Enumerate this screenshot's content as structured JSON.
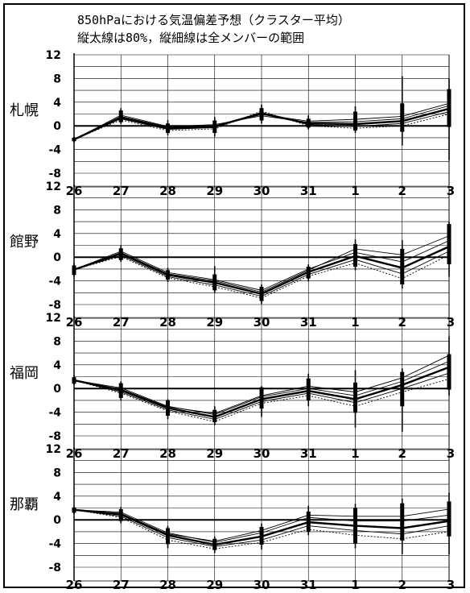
{
  "title": {
    "line1": "850hPaにおける気温偏差予想（クラスター平均）",
    "line2": "縦太線は80%，縦細線は全メンバーの範囲"
  },
  "chart_data": [
    {
      "type": "line",
      "station": "札幌",
      "categories": [
        "26",
        "27",
        "28",
        "29",
        "30",
        "31",
        "1",
        "2",
        "3"
      ],
      "yticks": [
        "12",
        "8",
        "4",
        "0",
        "-4",
        "-8"
      ],
      "ylim": [
        -8,
        12
      ],
      "grid": true,
      "series": [
        {
          "values": [
            -2.3,
            1.4,
            -0.4,
            -0.1,
            2.1,
            0.4,
            0.3,
            0.8,
            2.9
          ]
        },
        {
          "values": [
            -2.3,
            1.8,
            -0.1,
            0.2,
            1.7,
            0.6,
            0.7,
            1.2,
            3.4
          ]
        },
        {
          "values": [
            -2.3,
            1.2,
            -0.6,
            -0.3,
            2.3,
            0.2,
            -0.1,
            0.4,
            2.4
          ]
        },
        {
          "values": [
            -2.3,
            1.6,
            -0.2,
            0.0,
            1.9,
            0.8,
            1.1,
            1.6,
            3.8
          ]
        },
        {
          "values": [
            -2.3,
            1.0,
            -0.8,
            -0.5,
            2.5,
            0.0,
            -0.4,
            0.0,
            2.0
          ]
        }
      ],
      "range80": [
        [
          -2.6,
          -2.0
        ],
        [
          0.6,
          2.6
        ],
        [
          -1.2,
          0.4
        ],
        [
          -1.2,
          0.9
        ],
        [
          0.9,
          3.0
        ],
        [
          -0.3,
          1.2
        ],
        [
          -0.8,
          2.4
        ],
        [
          -1.0,
          3.8
        ],
        [
          -0.2,
          6.2
        ]
      ],
      "rangeAll": [
        [
          -2.8,
          -1.8
        ],
        [
          0.3,
          3.0
        ],
        [
          -1.6,
          1.0
        ],
        [
          -1.8,
          1.5
        ],
        [
          0.4,
          3.6
        ],
        [
          -0.6,
          1.8
        ],
        [
          -1.2,
          3.3
        ],
        [
          -3.3,
          8.4
        ],
        [
          -5.8,
          8.0
        ]
      ]
    },
    {
      "type": "line",
      "station": "館野",
      "categories": [
        "26",
        "27",
        "28",
        "29",
        "30",
        "31",
        "1",
        "2",
        "3"
      ],
      "yticks": [
        "12",
        "8",
        "4",
        "0",
        "-4",
        "-8"
      ],
      "ylim": [
        -8,
        12
      ],
      "grid": true,
      "series": [
        {
          "values": [
            -2.1,
            0.6,
            -3.0,
            -4.3,
            -6.2,
            -2.5,
            0.2,
            -1.8,
            1.8
          ]
        },
        {
          "values": [
            -2.1,
            1.0,
            -2.6,
            -3.8,
            -5.6,
            -2.0,
            0.8,
            -0.8,
            2.8
          ]
        },
        {
          "values": [
            -2.1,
            0.3,
            -3.3,
            -4.7,
            -6.6,
            -2.9,
            -0.4,
            -2.8,
            1.0
          ]
        },
        {
          "values": [
            -2.1,
            0.8,
            -2.8,
            -4.0,
            -5.9,
            -2.2,
            1.4,
            0.4,
            3.6
          ]
        },
        {
          "values": [
            -2.1,
            0.1,
            -3.5,
            -5.0,
            -6.9,
            -3.2,
            -1.0,
            -3.6,
            0.4
          ]
        }
      ],
      "range80": [
        [
          -3.0,
          -1.4
        ],
        [
          -0.5,
          1.5
        ],
        [
          -3.8,
          -2.2
        ],
        [
          -5.6,
          -2.9
        ],
        [
          -7.4,
          -5.0
        ],
        [
          -3.6,
          -1.6
        ],
        [
          -1.6,
          2.2
        ],
        [
          -4.6,
          1.4
        ],
        [
          -1.2,
          5.6
        ]
      ],
      "rangeAll": [
        [
          -3.3,
          -1.0
        ],
        [
          -0.8,
          2.0
        ],
        [
          -4.2,
          -1.8
        ],
        [
          -6.1,
          -1.5
        ],
        [
          -7.9,
          -4.6
        ],
        [
          -4.1,
          -1.2
        ],
        [
          -2.2,
          3.0
        ],
        [
          -5.3,
          2.9
        ],
        [
          -3.3,
          6.0
        ]
      ]
    },
    {
      "type": "line",
      "station": "福岡",
      "categories": [
        "26",
        "27",
        "28",
        "29",
        "30",
        "31",
        "1",
        "2",
        "3"
      ],
      "yticks": [
        "12",
        "8",
        "4",
        "0",
        "-4",
        "-8"
      ],
      "ylim": [
        -8,
        12
      ],
      "grid": true,
      "series": [
        {
          "values": [
            1.4,
            -0.3,
            -3.3,
            -4.8,
            -1.8,
            -0.4,
            -1.8,
            0.6,
            3.6
          ]
        },
        {
          "values": [
            1.4,
            0.1,
            -3.0,
            -4.4,
            -1.4,
            0.0,
            -1.2,
            1.2,
            4.6
          ]
        },
        {
          "values": [
            1.4,
            -0.6,
            -3.6,
            -5.2,
            -2.2,
            -0.8,
            -2.4,
            0.0,
            2.6
          ]
        },
        {
          "values": [
            1.4,
            -0.1,
            -3.1,
            -4.2,
            -1.2,
            0.4,
            -0.6,
            1.8,
            5.6
          ]
        },
        {
          "values": [
            1.4,
            -0.8,
            -3.8,
            -5.6,
            -2.5,
            -1.2,
            -3.0,
            -0.6,
            1.6
          ]
        }
      ],
      "range80": [
        [
          0.8,
          1.9
        ],
        [
          -1.6,
          0.9
        ],
        [
          -4.6,
          -2.0
        ],
        [
          -5.7,
          -3.6
        ],
        [
          -3.4,
          0.2
        ],
        [
          -2.0,
          1.7
        ],
        [
          -4.1,
          1.0
        ],
        [
          -3.0,
          2.8
        ],
        [
          -0.2,
          5.8
        ]
      ],
      "rangeAll": [
        [
          0.6,
          2.2
        ],
        [
          -2.0,
          1.2
        ],
        [
          -5.2,
          -1.8
        ],
        [
          -6.2,
          -3.0
        ],
        [
          -4.8,
          0.4
        ],
        [
          -3.0,
          2.5
        ],
        [
          -6.6,
          3.1
        ],
        [
          -7.3,
          3.4
        ],
        [
          -1.2,
          8.8
        ]
      ]
    },
    {
      "type": "line",
      "station": "那覇",
      "categories": [
        "26",
        "27",
        "28",
        "29",
        "30",
        "31",
        "1",
        "2",
        "3"
      ],
      "yticks": [
        "12",
        "8",
        "4",
        "0",
        "-4",
        "-8"
      ],
      "ylim": [
        -8,
        12
      ],
      "grid": true,
      "series": [
        {
          "values": [
            1.7,
            0.9,
            -2.6,
            -4.2,
            -2.8,
            -0.4,
            -1.0,
            -1.4,
            -0.2
          ]
        },
        {
          "values": [
            1.7,
            1.3,
            -2.2,
            -3.8,
            -2.2,
            0.4,
            -0.2,
            -0.2,
            0.8
          ]
        },
        {
          "values": [
            1.7,
            0.6,
            -3.0,
            -4.5,
            -3.4,
            -1.0,
            -1.8,
            -2.4,
            -1.0
          ]
        },
        {
          "values": [
            1.7,
            1.1,
            -2.4,
            -3.6,
            -1.8,
            0.8,
            0.6,
            0.6,
            1.8
          ]
        },
        {
          "values": [
            1.7,
            0.4,
            -3.4,
            -4.9,
            -3.8,
            -1.6,
            -2.6,
            -3.2,
            -2.0
          ]
        }
      ],
      "range80": [
        [
          1.2,
          2.1
        ],
        [
          -0.2,
          1.8
        ],
        [
          -4.1,
          -1.4
        ],
        [
          -5.1,
          -3.2
        ],
        [
          -4.2,
          -1.2
        ],
        [
          -2.0,
          1.4
        ],
        [
          -4.0,
          2.0
        ],
        [
          -3.5,
          2.8
        ],
        [
          -2.8,
          3.1
        ]
      ],
      "rangeAll": [
        [
          1.0,
          2.2
        ],
        [
          -0.6,
          2.2
        ],
        [
          -4.8,
          -1.0
        ],
        [
          -5.6,
          -2.8
        ],
        [
          -5.0,
          -0.6
        ],
        [
          -2.6,
          2.4
        ],
        [
          -4.8,
          2.7
        ],
        [
          -5.8,
          3.6
        ],
        [
          -5.8,
          4.6
        ]
      ]
    }
  ]
}
